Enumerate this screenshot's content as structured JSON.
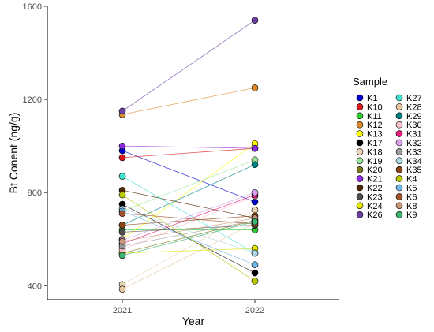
{
  "chart_data": {
    "type": "line",
    "x": [
      "2021",
      "2022"
    ],
    "xlabel": "Year",
    "ylabel": "Bt Conent (ng/g)",
    "ylim": [
      340,
      1600
    ],
    "yticks": [
      400,
      800,
      1200,
      1600
    ],
    "grid": false,
    "legend": {
      "title": "Sample",
      "placement": "right",
      "columns": 2
    },
    "series": [
      {
        "name": "K1",
        "color": "#0000cc",
        "values": [
          980,
          760
        ]
      },
      {
        "name": "K10",
        "color": "#d7191c",
        "values": [
          950,
          990
        ]
      },
      {
        "name": "K11",
        "color": "#33cc33",
        "values": [
          640,
          640
        ]
      },
      {
        "name": "K12",
        "color": "#d98a2b",
        "values": [
          1135,
          1250
        ]
      },
      {
        "name": "K13",
        "color": "#ffff00",
        "values": [
          600,
          1010
        ]
      },
      {
        "name": "K17",
        "color": "#000000",
        "values": [
          750,
          455
        ]
      },
      {
        "name": "K18",
        "color": "#e8d2b4",
        "values": [
          405,
          725
        ]
      },
      {
        "name": "K19",
        "color": "#99e699",
        "values": [
          720,
          940
        ]
      },
      {
        "name": "K20",
        "color": "#7a7a1e",
        "values": [
          540,
          680
        ]
      },
      {
        "name": "K21",
        "color": "#8a2be2",
        "values": [
          1000,
          990
        ]
      },
      {
        "name": "K22",
        "color": "#4d2600",
        "values": [
          810,
          690
        ]
      },
      {
        "name": "K23",
        "color": "#4d4d4d",
        "values": [
          630,
          660
        ]
      },
      {
        "name": "K24",
        "color": "#e6e600",
        "values": [
          540,
          560
        ]
      },
      {
        "name": "K26",
        "color": "#6b3fa0",
        "values": [
          1150,
          1540
        ]
      },
      {
        "name": "K27",
        "color": "#40e0d0",
        "values": [
          870,
          540
        ]
      },
      {
        "name": "K28",
        "color": "#e6c8a0",
        "values": [
          385,
          670
        ]
      },
      {
        "name": "K29",
        "color": "#008080",
        "values": [
          660,
          920
        ]
      },
      {
        "name": "K30",
        "color": "#ffc0cb",
        "values": [
          555,
          785
        ]
      },
      {
        "name": "K31",
        "color": "#e6197f",
        "values": [
          580,
          790
        ]
      },
      {
        "name": "K32",
        "color": "#d8a0e8",
        "values": [
          595,
          800
        ]
      },
      {
        "name": "K33",
        "color": "#999999",
        "values": [
          570,
          680
        ]
      },
      {
        "name": "K34",
        "color": "#add8e6",
        "values": [
          730,
          540
        ]
      },
      {
        "name": "K35",
        "color": "#8b4513",
        "values": [
          660,
          700
        ]
      },
      {
        "name": "K4",
        "color": "#b8c800",
        "values": [
          790,
          420
        ]
      },
      {
        "name": "K5",
        "color": "#6fb7e8",
        "values": [
          720,
          490
        ]
      },
      {
        "name": "K6",
        "color": "#a0522d",
        "values": [
          710,
          665
        ]
      },
      {
        "name": "K8",
        "color": "#c8957a",
        "values": [
          590,
          690
        ]
      },
      {
        "name": "K9",
        "color": "#3cb371",
        "values": [
          530,
          675
        ]
      }
    ]
  }
}
